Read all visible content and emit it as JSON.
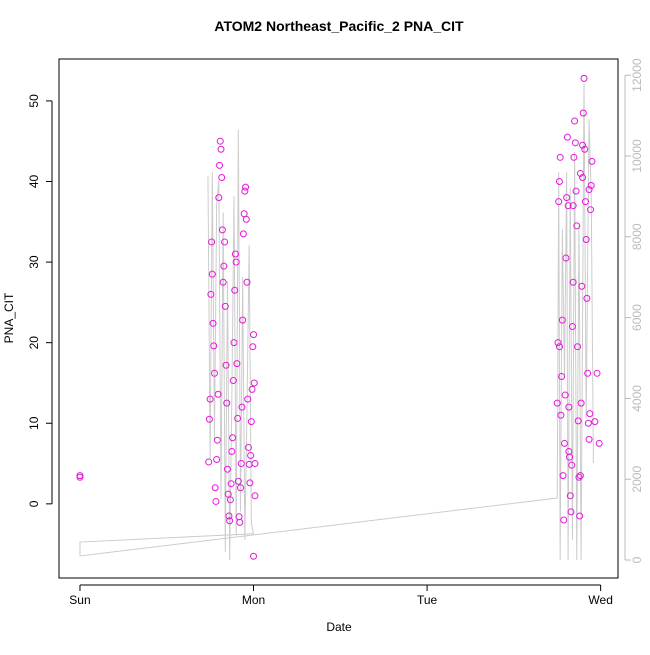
{
  "chart_data": {
    "type": "scatter",
    "title": "ATOM2 Northeast_Pacific_2 PNA_CIT",
    "x_label": "Date",
    "y_label": "PNA_CIT",
    "xlim": [
      -2.9,
      74.4
    ],
    "ylim": [
      -9.2,
      55.2
    ],
    "y2lim": [
      -445,
      12400
    ],
    "xticks": [
      {
        "value": 0,
        "label": "Sun"
      },
      {
        "value": 24,
        "label": "Mon"
      },
      {
        "value": 48,
        "label": "Tue"
      },
      {
        "value": 72,
        "label": "Wed"
      }
    ],
    "yticks": [
      0,
      10,
      20,
      30,
      40,
      50
    ],
    "y2ticks": [
      0,
      2000,
      4000,
      6000,
      8000,
      10000,
      12000
    ],
    "series": [
      {
        "type": "line",
        "axis": "y2",
        "color": "#cccccc",
        "x": [
          17.7,
          18.0,
          18.3,
          18.6,
          18.9,
          19.2,
          19.5,
          19.8,
          20.1,
          20.4,
          20.7,
          21.0,
          21.3,
          21.6,
          21.9,
          22.2,
          22.5,
          22.8,
          23.1,
          23.4,
          23.7,
          24.0,
          0,
          0,
          66,
          66.2,
          66.4,
          66.7,
          67.0,
          67.3,
          67.5,
          67.8,
          68.1,
          68.4,
          68.7,
          69.0,
          69.3,
          69.7,
          70.0,
          70.4,
          70.7,
          71.0
        ],
        "values": [
          9500,
          2500,
          9600,
          3000,
          8800,
          9400,
          1500,
          8600,
          200,
          6900,
          0,
          4000,
          9000,
          600,
          10650,
          1200,
          7000,
          500,
          3800,
          7800,
          900,
          650,
          445,
          100,
          1535,
          9600,
          0,
          8200,
          4500,
          9600,
          0,
          9200,
          500,
          10100,
          0,
          8300,
          0,
          11800,
          3500,
          10900,
          9000,
          2400
        ]
      },
      {
        "type": "scatter",
        "color": "#e619d9",
        "x": [
          0,
          0,
          17.8,
          17.9,
          18.0,
          18.1,
          18.2,
          18.3,
          18.4,
          18.5,
          18.6,
          18.7,
          18.8,
          18.9,
          19.0,
          19.1,
          19.2,
          19.3,
          19.4,
          19.5,
          19.6,
          19.7,
          19.8,
          19.9,
          20.0,
          20.1,
          20.2,
          20.3,
          20.4,
          20.5,
          20.6,
          20.7,
          20.8,
          20.9,
          21.0,
          21.1,
          21.2,
          21.3,
          21.4,
          21.5,
          21.6,
          21.7,
          21.8,
          21.9,
          22.0,
          22.1,
          22.2,
          22.3,
          22.4,
          22.5,
          22.6,
          22.7,
          22.8,
          22.9,
          23.0,
          23.1,
          23.2,
          23.3,
          23.4,
          23.5,
          23.6,
          23.7,
          23.8,
          23.9,
          24.0,
          24.1,
          24.2,
          24.2,
          24.0,
          66.0,
          66.1,
          66.2,
          66.3,
          66.4,
          66.5,
          66.6,
          66.7,
          66.8,
          66.9,
          67.0,
          67.1,
          67.2,
          67.3,
          67.4,
          67.5,
          67.6,
          67.7,
          67.8,
          67.9,
          68.0,
          68.1,
          68.2,
          68.3,
          68.4,
          68.5,
          68.6,
          68.7,
          68.8,
          68.9,
          69.0,
          69.1,
          69.2,
          69.3,
          69.4,
          69.5,
          69.6,
          69.7,
          69.8,
          69.9,
          70.0,
          70.1,
          70.2,
          70.3,
          70.4,
          70.5,
          70.6,
          70.7,
          70.8,
          70.4,
          69.5,
          69.2,
          68.2,
          67.6,
          66.3,
          71.2,
          71.5,
          71.8
        ],
        "values": [
          3.5,
          3.3,
          5.2,
          10.5,
          13,
          26,
          32.5,
          28.5,
          22.4,
          19.6,
          16.2,
          2,
          0.3,
          5.5,
          7.9,
          13.6,
          38,
          42,
          45,
          44,
          40.5,
          34,
          27.5,
          29.5,
          32.5,
          24.5,
          17.2,
          12.5,
          4.3,
          1.2,
          -1.5,
          -2.1,
          0.5,
          2.5,
          6.5,
          8.2,
          15.3,
          20,
          26.5,
          31,
          30,
          17.4,
          10.6,
          2.8,
          -1.6,
          -2.3,
          2,
          5,
          12,
          22.8,
          33.5,
          36,
          38.8,
          39.3,
          35.3,
          27.5,
          13,
          7,
          4.9,
          2.6,
          6,
          10.2,
          14.2,
          19.5,
          21,
          15,
          5,
          1,
          -6.5,
          12.5,
          20,
          37.5,
          40,
          43,
          11,
          15.8,
          22.8,
          3.5,
          -2,
          7.5,
          13.5,
          30.5,
          38,
          45.5,
          37,
          12,
          5.8,
          1,
          -1,
          4.8,
          22,
          37,
          43,
          47.5,
          44.8,
          38.8,
          34.5,
          19.5,
          10.3,
          3.3,
          -1.5,
          3.5,
          12.5,
          27,
          40.5,
          48.5,
          52.8,
          44,
          37.5,
          32.8,
          25.5,
          16.2,
          10,
          8,
          11.2,
          36.5,
          39.5,
          42.5,
          39,
          44.5,
          41,
          27.5,
          6.5,
          19.5,
          10.2,
          16.2,
          7.5
        ]
      }
    ]
  }
}
